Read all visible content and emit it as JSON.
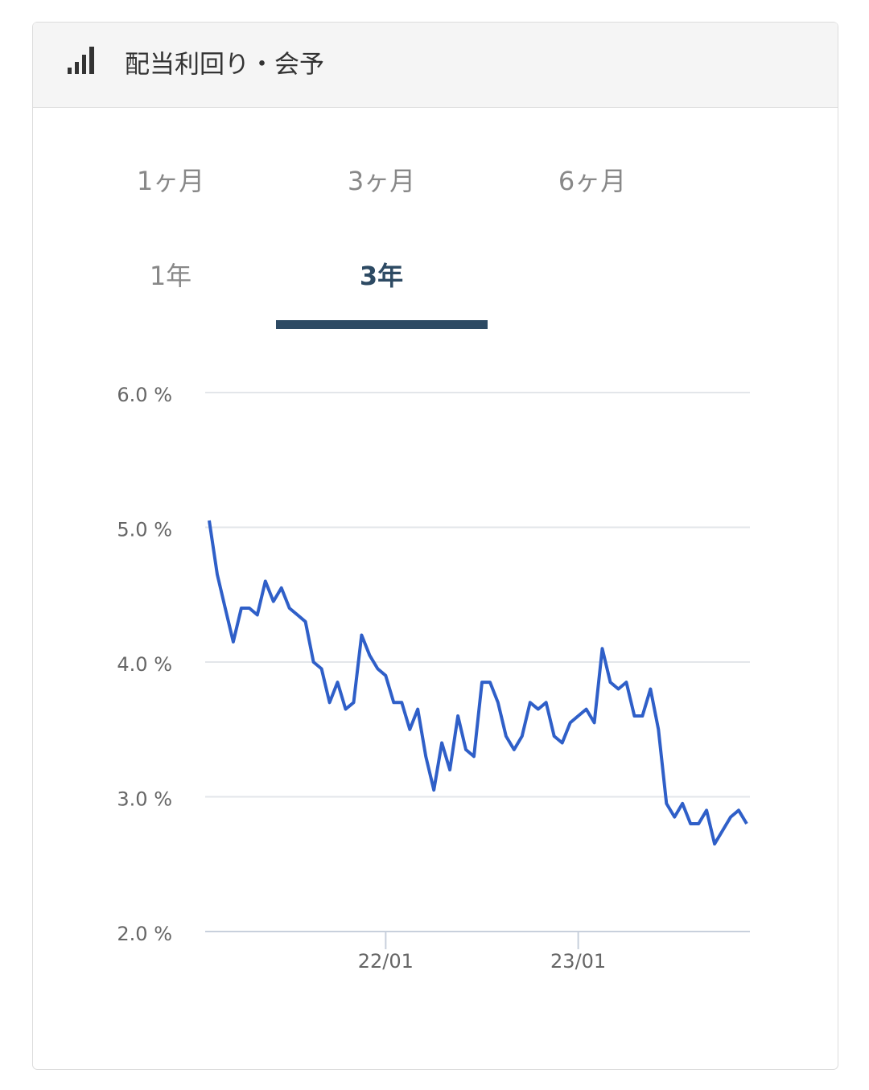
{
  "header": {
    "title": "配当利回り・会予"
  },
  "tabs": [
    "1ヶ月",
    "3ヶ月",
    "6ヶ月",
    "1年",
    "3年"
  ],
  "active_tab": 4,
  "chart_data": {
    "type": "line",
    "categories": [
      null,
      null,
      null,
      null,
      null,
      null,
      null,
      null,
      null,
      null,
      null,
      null,
      null,
      null,
      null,
      null,
      null,
      null,
      null,
      null,
      null,
      null,
      "22/01",
      null,
      null,
      null,
      null,
      null,
      null,
      null,
      null,
      null,
      null,
      null,
      null,
      null,
      null,
      null,
      null,
      null,
      null,
      null,
      null,
      null,
      null,
      null,
      "23/01",
      null,
      null,
      null,
      null,
      null,
      null,
      null,
      null,
      null,
      null,
      null,
      null,
      null,
      null,
      null,
      null,
      null,
      null,
      null,
      null,
      null
    ],
    "series": [
      {
        "color": "#2f5fc8",
        "values": [
          5.05,
          4.65,
          4.4,
          4.15,
          4.4,
          4.4,
          4.35,
          4.6,
          4.45,
          4.55,
          4.4,
          4.35,
          4.3,
          4.0,
          3.95,
          3.7,
          3.85,
          3.65,
          3.7,
          4.2,
          4.05,
          3.95,
          3.9,
          3.7,
          3.7,
          3.5,
          3.65,
          3.3,
          3.05,
          3.4,
          3.2,
          3.6,
          3.35,
          3.3,
          3.85,
          3.85,
          3.7,
          3.45,
          3.35,
          3.45,
          3.7,
          3.65,
          3.7,
          3.45,
          3.4,
          3.55,
          3.6,
          3.65,
          3.55,
          4.1,
          3.85,
          3.8,
          3.85,
          3.6,
          3.6,
          3.8,
          3.5,
          2.95,
          2.85,
          2.95,
          2.8,
          2.8,
          2.9,
          2.65,
          2.75,
          2.85,
          2.9,
          2.8
        ]
      }
    ],
    "ylim": [
      2,
      6
    ],
    "yticks": [
      {
        "value": 2,
        "label": "2.0 %"
      },
      {
        "value": 3,
        "label": "3.0 %"
      },
      {
        "value": 4,
        "label": "4.0 %"
      },
      {
        "value": 5,
        "label": "5.0 %"
      },
      {
        "value": 6,
        "label": "6.0 %"
      }
    ],
    "grid": true
  }
}
